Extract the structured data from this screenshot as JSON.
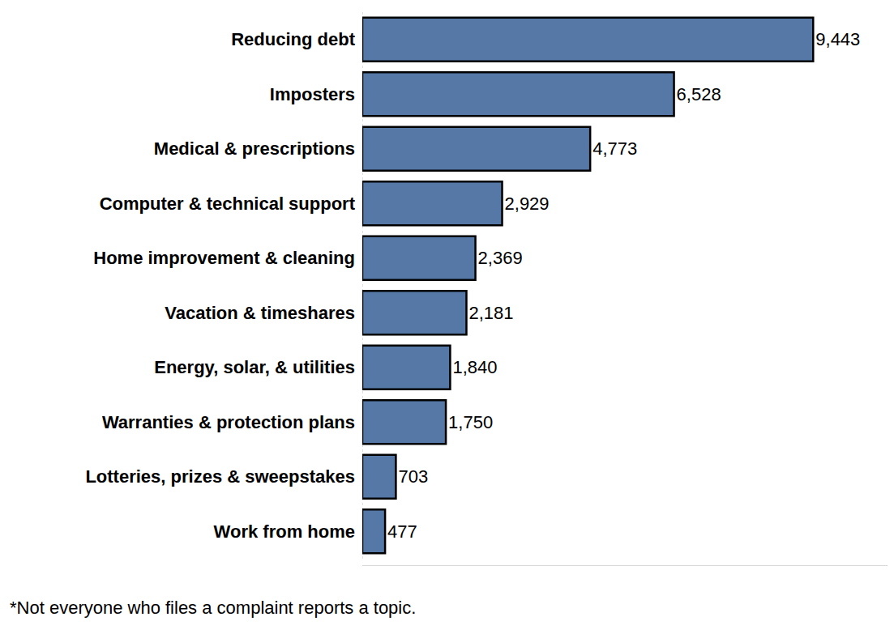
{
  "chart_data": {
    "type": "bar",
    "orientation": "horizontal",
    "categories": [
      "Reducing debt",
      "Imposters",
      "Medical & prescriptions",
      "Computer & technical support",
      "Home improvement & cleaning",
      "Vacation & timeshares",
      "Energy, solar, & utilities",
      "Warranties & protection plans",
      "Lotteries, prizes & sweepstakes",
      "Work from home"
    ],
    "values": [
      9443,
      6528,
      4773,
      2929,
      2369,
      2181,
      1840,
      1750,
      703,
      477
    ],
    "value_labels": [
      "9,443",
      "6,528",
      "4,773",
      "2,929",
      "2,369",
      "2,181",
      "1,840",
      "1,750",
      "703",
      "477"
    ],
    "color": "#5578a6",
    "xlim": [
      0,
      11000
    ],
    "data_labels": true,
    "tick_labels": "y",
    "grid": false,
    "annotations": [
      "*Not everyone who files a complaint reports a topic."
    ]
  }
}
